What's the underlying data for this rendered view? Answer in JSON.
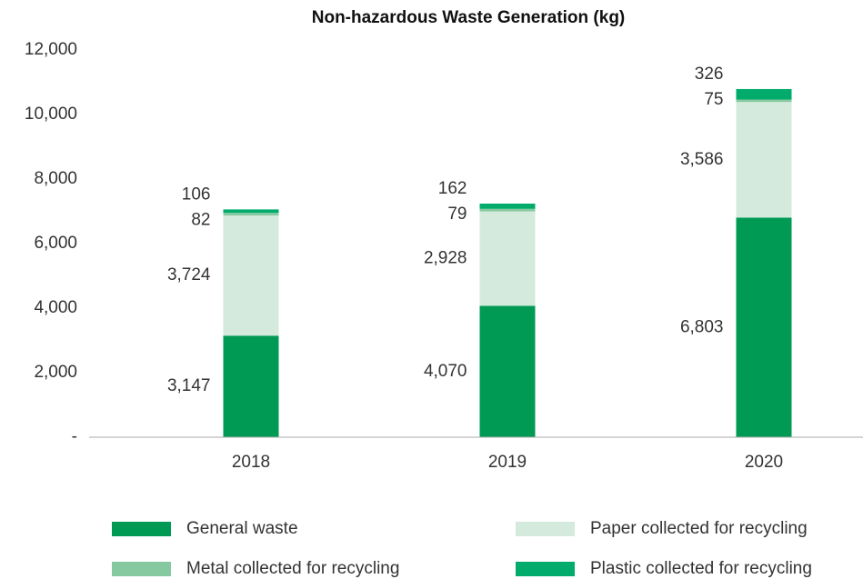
{
  "chart_data": {
    "type": "stacked_bar",
    "title": "Non-hazardous Waste Generation (kg)",
    "categories": [
      "2018",
      "2019",
      "2020"
    ],
    "series": [
      {
        "name": "General waste",
        "color": "#009a55",
        "values": [
          3147,
          4070,
          6803
        ],
        "value_labels": [
          "3,147",
          "4,070",
          "6,803"
        ]
      },
      {
        "name": "Paper collected for recycling",
        "color": "#d4eadc",
        "values": [
          3724,
          2928,
          3586
        ],
        "value_labels": [
          "3,724",
          "2,928",
          "3,586"
        ]
      },
      {
        "name": "Metal collected for recycling",
        "color": "#86c9a0",
        "values": [
          82,
          79,
          75
        ]
      },
      {
        "name": "Plastic collected for recycling",
        "color": "#00ab6c",
        "values": [
          106,
          162,
          326
        ]
      }
    ],
    "ylim": [
      0,
      12000
    ],
    "yticks": [
      {
        "value": 0,
        "label": "-"
      },
      {
        "value": 2000,
        "label": "2,000"
      },
      {
        "value": 4000,
        "label": "4,000"
      },
      {
        "value": 6000,
        "label": "6,000"
      },
      {
        "value": 8000,
        "label": "8,000"
      },
      {
        "value": 10000,
        "label": "10,000"
      },
      {
        "value": 12000,
        "label": "12,000"
      }
    ],
    "grid": false
  }
}
